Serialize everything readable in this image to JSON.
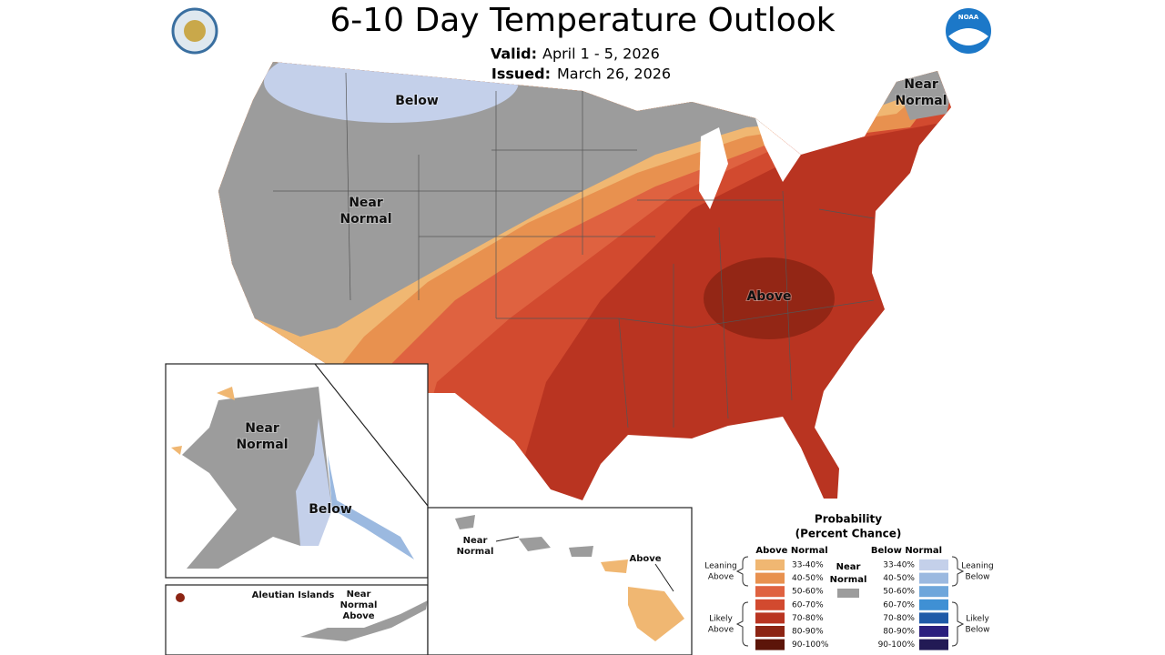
{
  "header": {
    "title": "6-10 Day Temperature Outlook",
    "valid_label": "Valid:",
    "valid": "April 1 - 5, 2026",
    "issued_label": "Issued:",
    "issued": "March 26, 2026",
    "logo_text": "NOAA"
  },
  "map_labels": [
    {
      "lines": [
        "Below"
      ]
    },
    {
      "lines": [
        "Near",
        "Normal"
      ]
    },
    {
      "lines": [
        "Above"
      ]
    },
    {
      "lines": [
        "Near",
        "Normal"
      ]
    },
    {
      "lines": [
        "Near",
        "Normal"
      ]
    },
    {
      "lines": [
        "Below"
      ]
    },
    {
      "lines": [
        "Aleutian Islands"
      ]
    },
    {
      "lines": [
        "Near",
        "Normal",
        "Above"
      ]
    },
    {
      "lines": [
        "Near",
        "Normal"
      ]
    },
    {
      "lines": [
        "Above"
      ]
    }
  ],
  "legend": {
    "title": [
      "Probability",
      "(Percent Chance)"
    ],
    "above": {
      "heading": "Above Normal",
      "bins": [
        {
          "label": "33-40%",
          "color": "#f0b772"
        },
        {
          "label": "40-50%",
          "color": "#e8914f"
        },
        {
          "label": "50-60%",
          "color": "#df6240"
        },
        {
          "label": "60-70%",
          "color": "#d24a2f"
        },
        {
          "label": "70-80%",
          "color": "#b93421"
        },
        {
          "label": "80-90%",
          "color": "#8c2413"
        },
        {
          "label": "90-100%",
          "color": "#5c1509"
        }
      ]
    },
    "near": {
      "lines": [
        "Near",
        "Normal"
      ],
      "color": "#9c9c9c"
    },
    "below": {
      "heading": "Below Normal",
      "bins": [
        {
          "label": "33-40%",
          "color": "#c4d0ea"
        },
        {
          "label": "40-50%",
          "color": "#9bb9e0"
        },
        {
          "label": "50-60%",
          "color": "#6ea6db"
        },
        {
          "label": "60-70%",
          "color": "#3f90d4"
        },
        {
          "label": "70-80%",
          "color": "#1f5aa8"
        },
        {
          "label": "80-90%",
          "color": "#2b1f7e"
        },
        {
          "label": "90-100%",
          "color": "#221a55"
        }
      ]
    },
    "brackets": [
      {
        "lines": [
          "Leaning",
          "Above"
        ]
      },
      {
        "lines": [
          "Likely",
          "Above"
        ]
      },
      {
        "lines": [
          "Leaning",
          "Below"
        ]
      },
      {
        "lines": [
          "Likely",
          "Below"
        ]
      }
    ]
  }
}
